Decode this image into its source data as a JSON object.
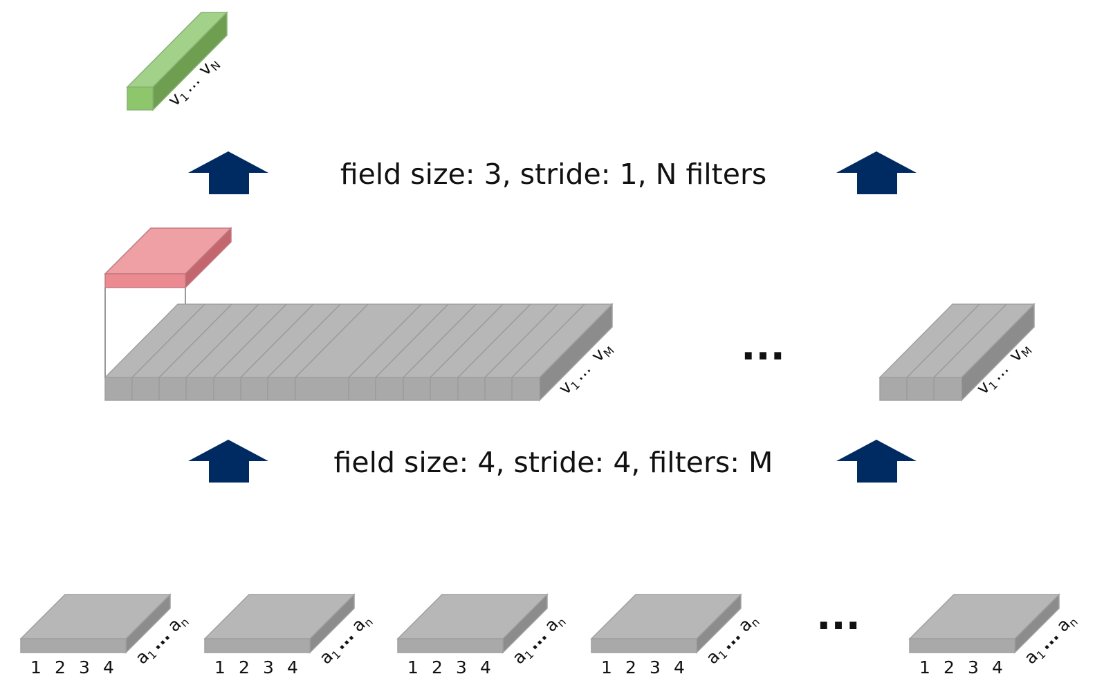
{
  "captions": {
    "upper": "field size: 3, stride: 1, N filters",
    "lower": "field size: 4, stride: 4, filters: M"
  },
  "ellipsis": "...",
  "output_block": {
    "range_start": "v",
    "range_start_sub": "1",
    "range_dots": "...",
    "range_end": "v",
    "range_end_sub": "N",
    "color": "#8dc66b"
  },
  "filter_block": {
    "color": "#eb8a91"
  },
  "feature_map_left": {
    "columns": 15,
    "range_start": "v",
    "range_start_sub": "1",
    "range_dots": "...",
    "range_end": "v",
    "range_end_sub": "M"
  },
  "feature_map_right": {
    "columns": 3,
    "range_start": "v",
    "range_start_sub": "1",
    "range_dots": "...",
    "range_end": "v",
    "range_end_sub": "M"
  },
  "input_tiles": {
    "tick_labels": [
      "1",
      "2",
      "3",
      "4"
    ],
    "range_start": "a",
    "range_start_sub": "1",
    "range_dots": "...",
    "range_end": "a",
    "range_end_sub": "n",
    "count_visible": 5
  },
  "arrow_color": "#002a62",
  "block_color": "#b3b3b3"
}
